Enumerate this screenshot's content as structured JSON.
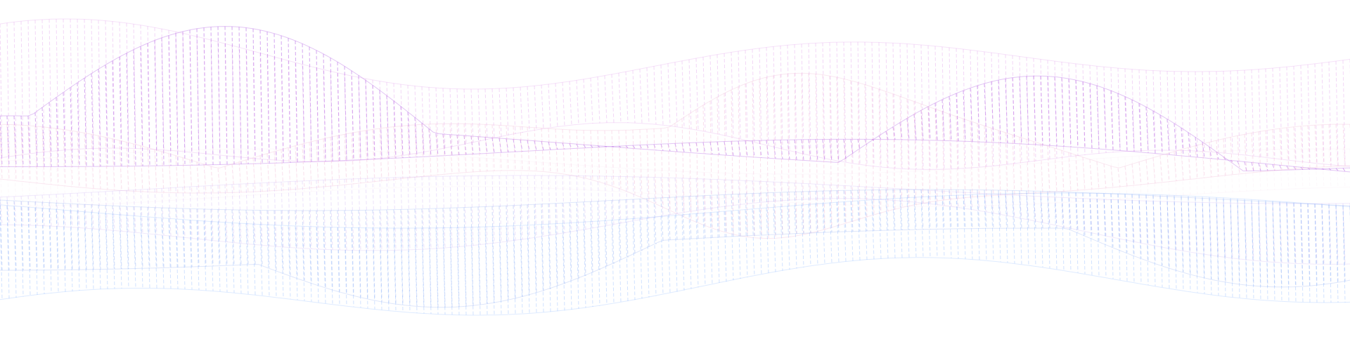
{
  "canvas": {
    "background": "#ffffff"
  },
  "palette": {
    "violet": "#b76be6",
    "magenta": "#d98be6",
    "lavender": "#c6a8f2",
    "periwinkle": "#9bb3f2",
    "sky": "#8cb6ff",
    "blush": "#f1b8d4",
    "mist": "#f6e7f1"
  },
  "ribbons": [
    {
      "name": "upper-violet-ribbon",
      "color_key": "violet"
    },
    {
      "name": "upper-magenta-ribbon",
      "color_key": "magenta"
    },
    {
      "name": "central-blush-ribbon",
      "color_key": "blush"
    },
    {
      "name": "central-mist-ribbon",
      "color_key": "mist"
    },
    {
      "name": "lower-lavender-ribbon",
      "color_key": "lavender"
    },
    {
      "name": "lower-periwinkle-ribbon",
      "color_key": "periwinkle"
    },
    {
      "name": "lower-sky-ribbon",
      "color_key": "sky"
    }
  ]
}
